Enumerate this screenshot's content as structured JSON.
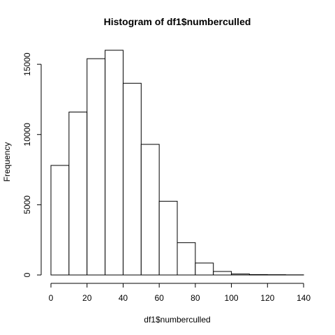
{
  "chart_data": {
    "type": "bar",
    "title": "Histogram of df1$numberculled",
    "xlabel": "df1$numberculled",
    "ylabel": "Frequency",
    "bins": [
      {
        "x0": 0,
        "x1": 10,
        "count": 7800
      },
      {
        "x0": 10,
        "x1": 20,
        "count": 11600
      },
      {
        "x0": 20,
        "x1": 30,
        "count": 15400
      },
      {
        "x0": 30,
        "x1": 40,
        "count": 16000
      },
      {
        "x0": 40,
        "x1": 50,
        "count": 13650
      },
      {
        "x0": 50,
        "x1": 60,
        "count": 9300
      },
      {
        "x0": 60,
        "x1": 70,
        "count": 5250
      },
      {
        "x0": 70,
        "x1": 80,
        "count": 2300
      },
      {
        "x0": 80,
        "x1": 90,
        "count": 850
      },
      {
        "x0": 90,
        "x1": 100,
        "count": 250
      },
      {
        "x0": 100,
        "x1": 110,
        "count": 70
      },
      {
        "x0": 110,
        "x1": 120,
        "count": 30
      },
      {
        "x0": 120,
        "x1": 130,
        "count": 20
      },
      {
        "x0": 130,
        "x1": 140,
        "count": 10
      }
    ],
    "xlim": [
      0,
      140
    ],
    "ylim": [
      0,
      16000
    ],
    "x_ticks": [
      0,
      20,
      40,
      60,
      80,
      100,
      120,
      140
    ],
    "y_ticks": [
      0,
      5000,
      10000,
      15000
    ],
    "grid": false,
    "colors": {
      "bar_fill": "#ffffff",
      "bar_stroke": "#000000"
    }
  }
}
